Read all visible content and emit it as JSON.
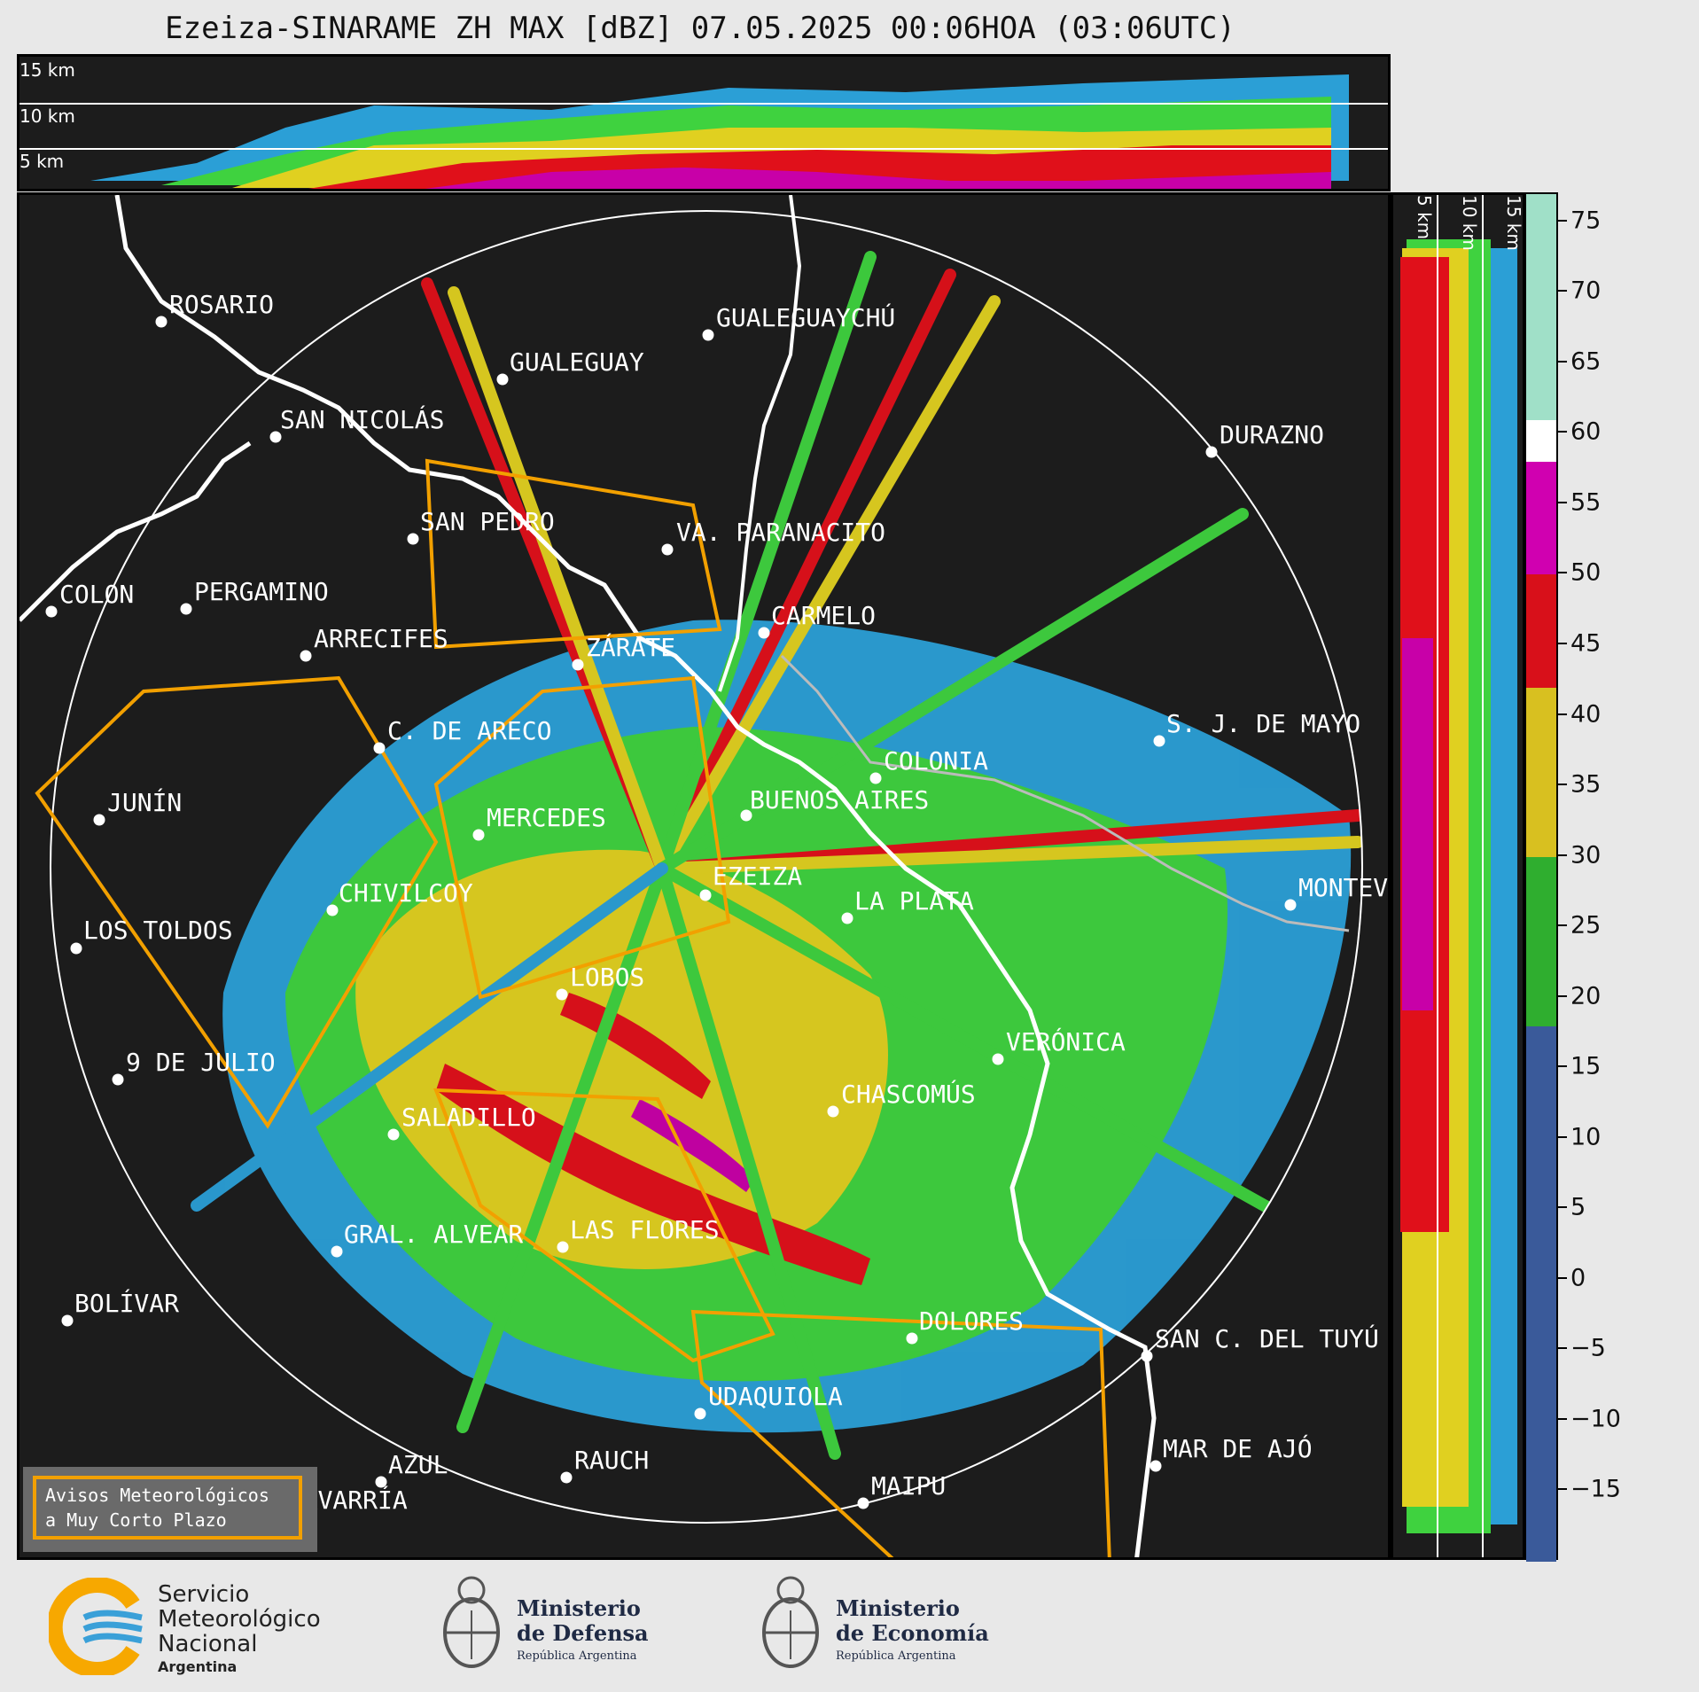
{
  "header": {
    "title": "Ezeiza-SINARAME ZH MAX [dBZ] 07.05.2025 00:06HOA (03:06UTC)"
  },
  "top_panel": {
    "altitude_labels": [
      "15 km",
      "10 km",
      "5 km"
    ]
  },
  "right_panel": {
    "altitude_labels": [
      "5 km",
      "10 km",
      "15 km"
    ]
  },
  "map": {
    "radar_site": "EZEIZA",
    "cities": [
      {
        "name": "ROSARIO"
      },
      {
        "name": "GUALEGUAYCHÚ"
      },
      {
        "name": "GUALEGUAY"
      },
      {
        "name": "SAN NICOLÁS"
      },
      {
        "name": "DURAZNO"
      },
      {
        "name": "SAN PEDRO"
      },
      {
        "name": "VA. PARANACITO"
      },
      {
        "name": "COLON"
      },
      {
        "name": "PERGAMINO"
      },
      {
        "name": "CARMELO"
      },
      {
        "name": "ARRECIFES"
      },
      {
        "name": "ZÁRATE"
      },
      {
        "name": "S. J. DE MAYO"
      },
      {
        "name": "C. DE ARECO"
      },
      {
        "name": "COLONIA"
      },
      {
        "name": "JUNÍN"
      },
      {
        "name": "BUENOS AIRES"
      },
      {
        "name": "MERCEDES"
      },
      {
        "name": "EZEIZA"
      },
      {
        "name": "CHIVILCOY"
      },
      {
        "name": "LA PLATA"
      },
      {
        "name": "MONTEVIDEO"
      },
      {
        "name": "LOS TOLDOS"
      },
      {
        "name": "LOBOS"
      },
      {
        "name": "VERÓNICA"
      },
      {
        "name": "9 DE JULIO"
      },
      {
        "name": "CHASCOMÚS"
      },
      {
        "name": "SALADILLO"
      },
      {
        "name": "GRAL. ALVEAR"
      },
      {
        "name": "LAS FLORES"
      },
      {
        "name": "BOLÍVAR"
      },
      {
        "name": "DOLORES"
      },
      {
        "name": "SAN C. DEL TUYÚ"
      },
      {
        "name": "UDAQUIOLA"
      },
      {
        "name": "MAR DE AJÓ"
      },
      {
        "name": "AZUL"
      },
      {
        "name": "RAUCH"
      },
      {
        "name": "OLAVARRÍA"
      },
      {
        "name": "MAIPU"
      }
    ]
  },
  "legend": {
    "line1": "Avisos Meteorológicos",
    "line2": "a Muy Corto Plazo",
    "color": "#f2a000"
  },
  "colorbar": {
    "unit": "dBZ",
    "ticks": [
      "75",
      "70",
      "65",
      "60",
      "55",
      "50",
      "45",
      "40",
      "35",
      "30",
      "25",
      "20",
      "15",
      "10",
      "5",
      "0",
      "−5",
      "−10",
      "−15"
    ],
    "range": [
      -20,
      77
    ],
    "bands": [
      {
        "from": -20,
        "to": 18,
        "color": "#3a5a9a"
      },
      {
        "from": 18,
        "to": 30,
        "color": "#2fae2f"
      },
      {
        "from": 30,
        "to": 42,
        "color": "#d8c020"
      },
      {
        "from": 42,
        "to": 50,
        "color": "#d8101a"
      },
      {
        "from": 50,
        "to": 58,
        "color": "#d000b0"
      },
      {
        "from": 58,
        "to": 61,
        "color": "#ffffff"
      },
      {
        "from": 61,
        "to": 77,
        "color": "#a0e0c8"
      }
    ]
  },
  "logos": {
    "smn": {
      "line1": "Servicio",
      "line2": "Meteorológico",
      "line3": "Nacional",
      "line4": "Argentina"
    },
    "defensa": {
      "line1": "Ministerio",
      "line2": "de Defensa",
      "line3": "República Argentina"
    },
    "economia": {
      "line1": "Ministerio",
      "line2": "de Economía",
      "line3": "República Argentina"
    }
  }
}
